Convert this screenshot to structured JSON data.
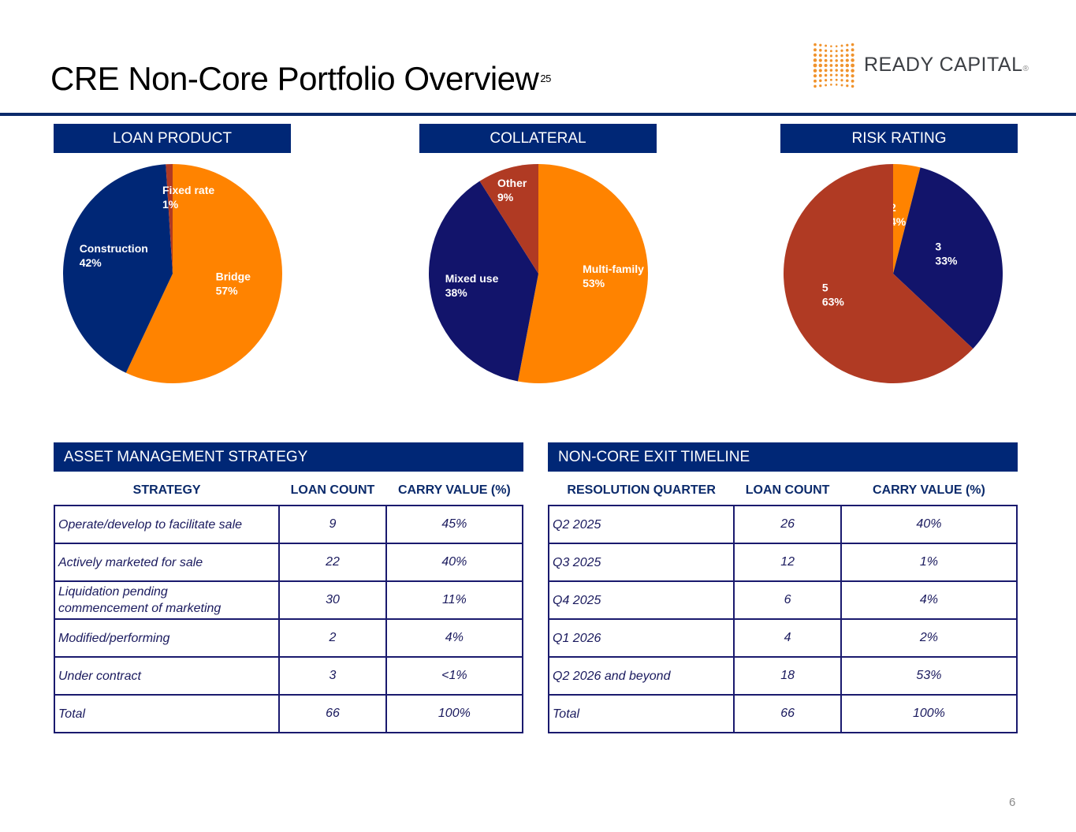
{
  "header": {
    "title": "CRE Non-Core Portfolio Overview",
    "footnote_ref": "25",
    "logo_text": "READY CAPITAL",
    "logo_mark": "®"
  },
  "colors": {
    "navy": "#002776",
    "orange": "#FF8300",
    "rust": "#B03A23",
    "indigo": "#12146B"
  },
  "chart_data": [
    {
      "type": "pie",
      "title": "LOAN PRODUCT",
      "slices": [
        {
          "label": "Bridge",
          "value": 57,
          "display": "57%",
          "color": "#FF8300"
        },
        {
          "label": "Construction",
          "value": 42,
          "display": "42%",
          "color": "#002776"
        },
        {
          "label": "Fixed rate",
          "value": 1,
          "display": "1%",
          "color": "#B03A23"
        }
      ]
    },
    {
      "type": "pie",
      "title": "COLLATERAL",
      "slices": [
        {
          "label": "Multi-family",
          "value": 53,
          "display": "53%",
          "color": "#FF8300"
        },
        {
          "label": "Mixed use",
          "value": 38,
          "display": "38%",
          "color": "#12146B"
        },
        {
          "label": "Other",
          "value": 9,
          "display": "9%",
          "color": "#B03A23"
        }
      ]
    },
    {
      "type": "pie",
      "title": "RISK RATING",
      "slices": [
        {
          "label": "2",
          "value": 4,
          "display": "4%",
          "color": "#FF8300"
        },
        {
          "label": "3",
          "value": 33,
          "display": "33%",
          "color": "#12146B"
        },
        {
          "label": "5",
          "value": 63,
          "display": "63%",
          "color": "#B03A23"
        }
      ]
    }
  ],
  "strategy_table": {
    "title": "ASSET MANAGEMENT STRATEGY",
    "columns": [
      "STRATEGY",
      "LOAN COUNT",
      "CARRY VALUE (%)"
    ],
    "rows": [
      [
        "Operate/develop to facilitate sale",
        "9",
        "45%"
      ],
      [
        "Actively marketed for sale",
        "22",
        "40%"
      ],
      [
        "Liquidation pending commencement of marketing",
        "30",
        "11%"
      ],
      [
        "Modified/performing",
        "2",
        "4%"
      ],
      [
        "Under contract",
        "3",
        "<1%"
      ],
      [
        "Total",
        "66",
        "100%"
      ]
    ]
  },
  "timeline_table": {
    "title": "NON-CORE EXIT TIMELINE",
    "columns": [
      "RESOLUTION QUARTER",
      "LOAN COUNT",
      "CARRY VALUE (%)"
    ],
    "rows": [
      [
        "Q2 2025",
        "26",
        "40%"
      ],
      [
        "Q3 2025",
        "12",
        "1%"
      ],
      [
        "Q4 2025",
        "6",
        "4%"
      ],
      [
        "Q1 2026",
        "4",
        "2%"
      ],
      [
        "Q2 2026 and beyond",
        "18",
        "53%"
      ],
      [
        "Total",
        "66",
        "100%"
      ]
    ]
  },
  "footer": {
    "page_number": "6"
  }
}
